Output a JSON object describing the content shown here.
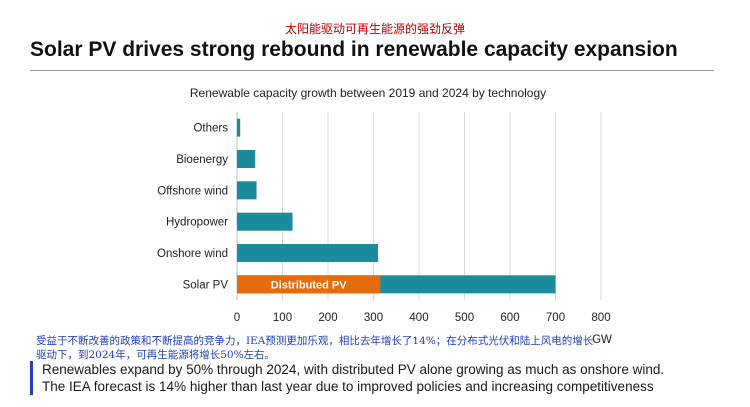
{
  "header": {
    "title_cn": "太阳能驱动可再生能源的强劲反弹",
    "title": "Solar PV drives strong rebound in renewable capacity expansion"
  },
  "chart_data": {
    "type": "bar",
    "orientation": "horizontal",
    "title": "Renewable capacity growth between 2019 and 2024 by technology",
    "categories": [
      "Others",
      "Bioenergy",
      "Offshore wind",
      "Hydropower",
      "Onshore wind",
      "Solar PV"
    ],
    "values": [
      7,
      40,
      43,
      122,
      310,
      700
    ],
    "segment": {
      "category": "Solar PV",
      "label": "Distributed PV",
      "value": 315,
      "color": "#e46c0a"
    },
    "bar_color": "#1a8c9b",
    "xlabel": "GW",
    "ylabel": "",
    "xlim": [
      0,
      800
    ],
    "xticks": [
      0,
      100,
      200,
      300,
      400,
      500,
      600,
      700,
      800
    ],
    "grid": true,
    "legend": "none"
  },
  "notes": {
    "cn": "受益于不断改善的政策和不断提高的竞争力，IEA预测更加乐观，相比去年增长了14%；在分布式光伏和陆上风电的增长驱动下，到2024年，可再生能源将增长50%左右。",
    "en_line1": "Renewables expand by 50% through 2024, with distributed PV alone growing as much as onshore wind.",
    "en_line2": "The IEA forecast is 14% higher than last year due to improved policies and increasing competitiveness"
  }
}
